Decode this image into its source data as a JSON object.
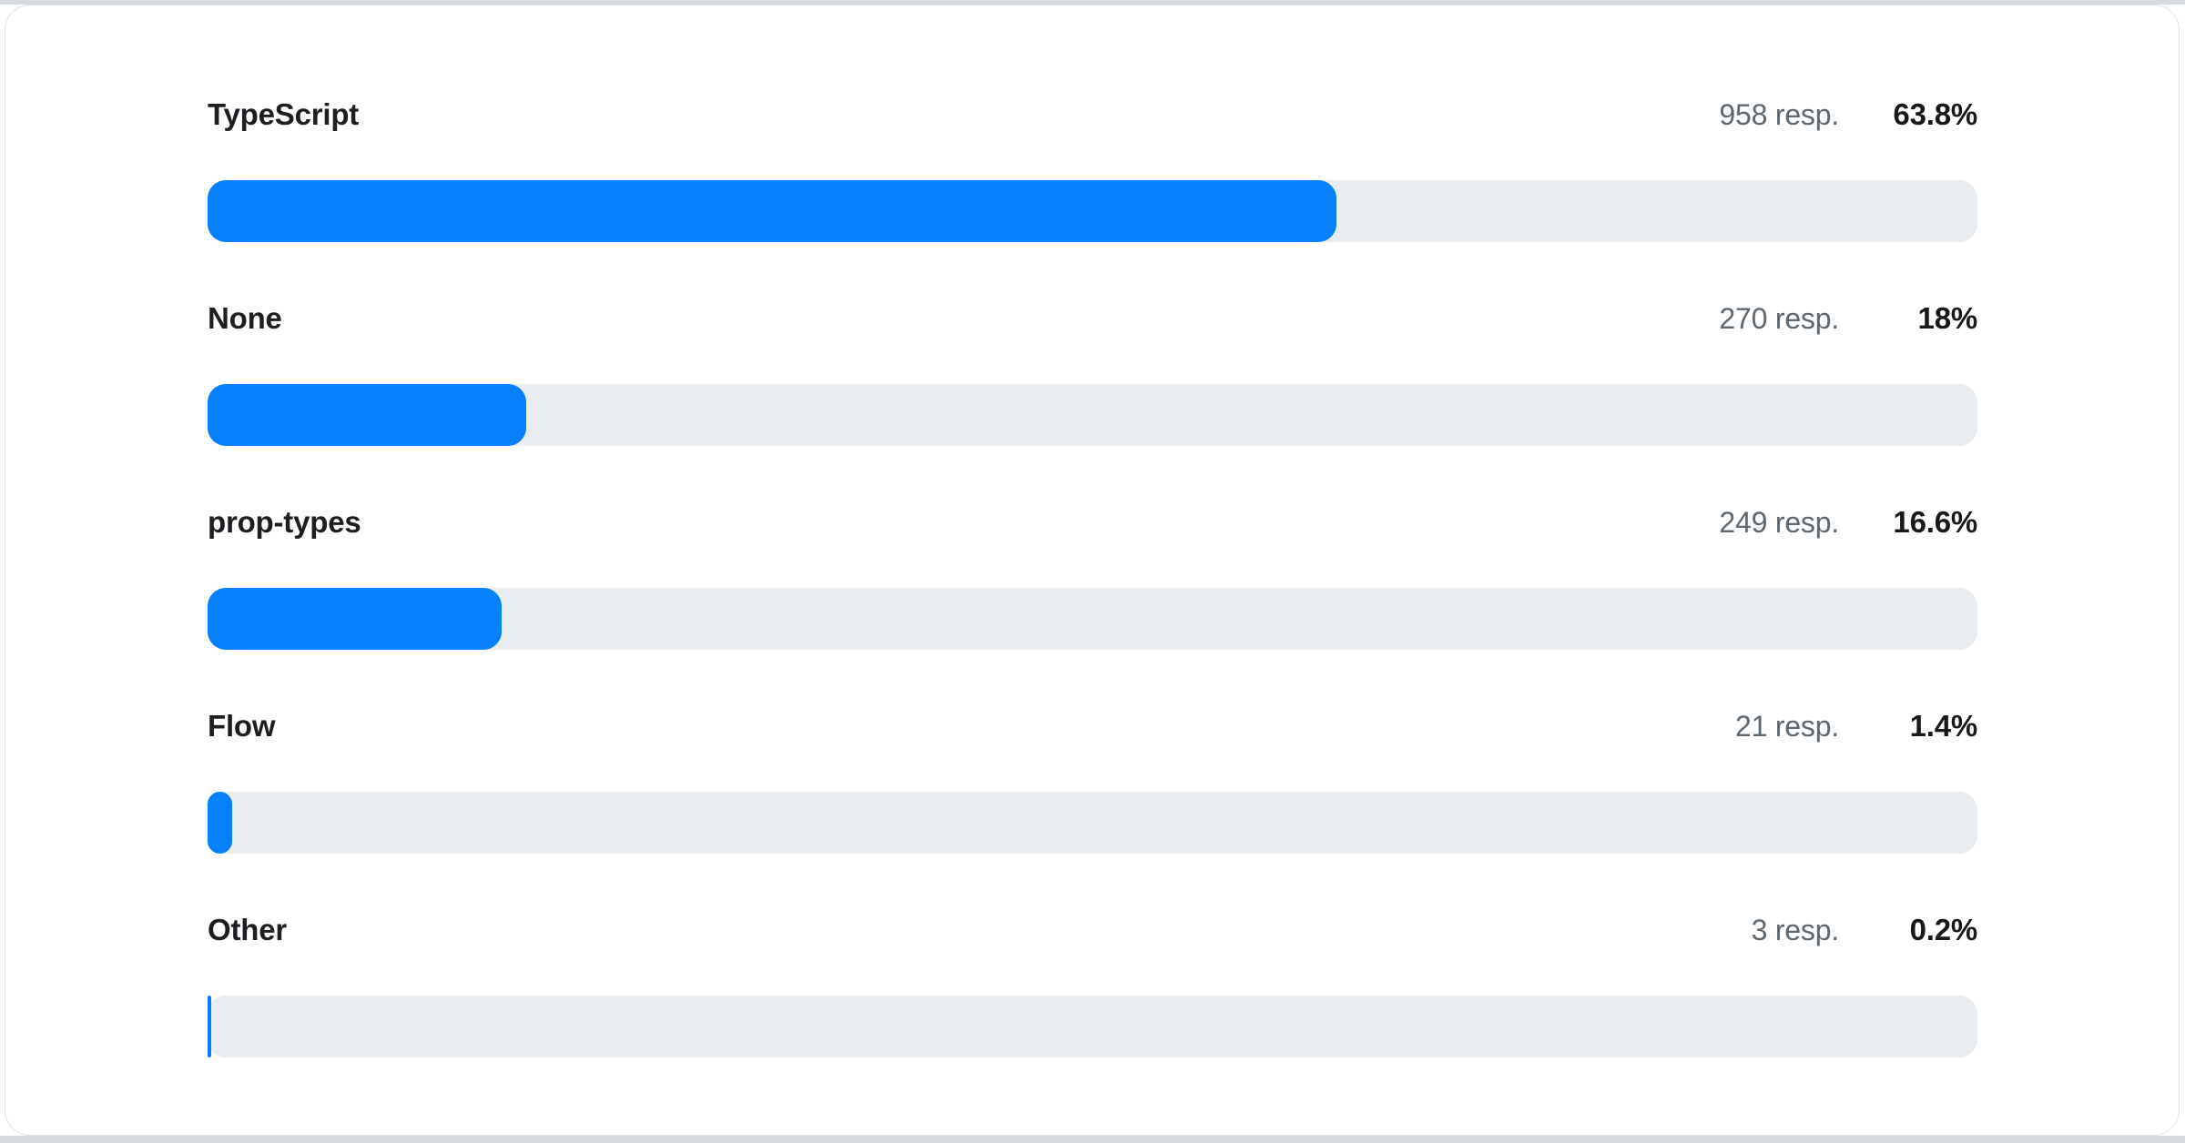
{
  "chart_data": {
    "type": "bar",
    "orientation": "horizontal",
    "title": "",
    "categories": [
      "TypeScript",
      "None",
      "prop-types",
      "Flow",
      "Other"
    ],
    "series": [
      {
        "name": "Respondents",
        "values": [
          958,
          270,
          249,
          21,
          3
        ]
      },
      {
        "name": "Percentage",
        "values": [
          63.8,
          18,
          16.6,
          1.4,
          0.2
        ]
      }
    ],
    "rows": [
      {
        "label": "TypeScript",
        "responses_text": "958 resp.",
        "percent_text": "63.8%",
        "percent": 63.8
      },
      {
        "label": "None",
        "responses_text": "270 resp.",
        "percent_text": "18%",
        "percent": 18
      },
      {
        "label": "prop-types",
        "responses_text": "249 resp.",
        "percent_text": "16.6%",
        "percent": 16.6
      },
      {
        "label": "Flow",
        "responses_text": "21 resp.",
        "percent_text": "1.4%",
        "percent": 1.4
      },
      {
        "label": "Other",
        "responses_text": "3 resp.",
        "percent_text": "0.2%",
        "percent": 0.2
      }
    ],
    "xlim": [
      0,
      100
    ],
    "grid": false,
    "legend": false,
    "colors": {
      "bar_fill": "#0781fb",
      "bar_track": "#e9ecf0",
      "label_text": "#1c1e21",
      "responses_text": "#5c6770",
      "percent_text": "#17191c",
      "card_background": "#ffffff",
      "card_border": "#e0e3e6",
      "page_edge": "#d8dbde"
    }
  }
}
